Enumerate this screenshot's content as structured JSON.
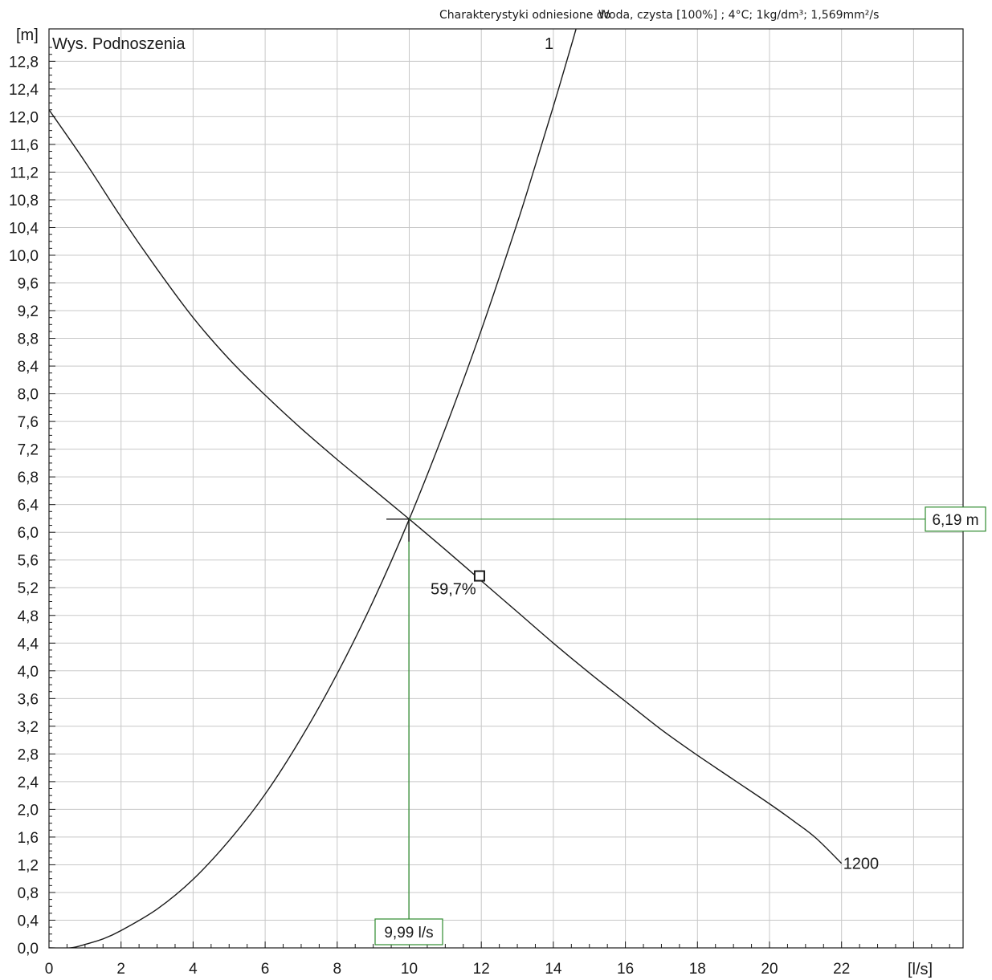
{
  "header": {
    "left_text": "Charakterystyki odniesione do",
    "right_text": "Woda, czysta [100%] ; 4°C; 1kg/dm³; 1,569mm²/s"
  },
  "chart_data": {
    "type": "line",
    "title": "Wys. Podnoszenia",
    "xlabel": "[l/s]",
    "ylabel": "[m]",
    "xlim": [
      0,
      25.2
    ],
    "ylim": [
      0,
      13.1
    ],
    "x_ticks": [
      0,
      2,
      4,
      6,
      8,
      10,
      12,
      14,
      16,
      18,
      20,
      22
    ],
    "x_tick_labels": [
      "0",
      "2",
      "4",
      "6",
      "8",
      "10",
      "12",
      "14",
      "16",
      "18",
      "20",
      "22"
    ],
    "y_ticks": [
      0,
      0.4,
      0.8,
      1.2,
      1.6,
      2.0,
      2.4,
      2.8,
      3.2,
      3.6,
      4.0,
      4.4,
      4.8,
      5.2,
      5.6,
      6.0,
      6.4,
      6.8,
      7.2,
      7.6,
      8.0,
      8.4,
      8.8,
      9.2,
      9.6,
      10.0,
      10.4,
      10.8,
      11.2,
      11.6,
      12.0,
      12.4,
      12.8
    ],
    "y_tick_labels": [
      "0,0",
      "0,4",
      "0,8",
      "1,2",
      "1,6",
      "2,0",
      "2,4",
      "2,8",
      "3,2",
      "3,6",
      "4,0",
      "4,4",
      "4,8",
      "5,2",
      "5,6",
      "6,0",
      "6,4",
      "6,8",
      "7,2",
      "7,6",
      "8,0",
      "8,4",
      "8,8",
      "9,2",
      "9,6",
      "10,0",
      "10,4",
      "10,8",
      "11,2",
      "11,6",
      "12,0",
      "12,4",
      "12,8"
    ],
    "grid": true,
    "series": [
      {
        "name": "1200",
        "kind": "pump-curve",
        "x": [
          0,
          1,
          2,
          3,
          4,
          5,
          6,
          7,
          8,
          9,
          10,
          11,
          12,
          13,
          14,
          15,
          16,
          17,
          18,
          19,
          20,
          20.7,
          21.3,
          22
        ],
        "y": [
          12.1,
          11.35,
          10.55,
          9.8,
          9.1,
          8.5,
          7.98,
          7.5,
          7.05,
          6.62,
          6.19,
          5.75,
          5.3,
          4.85,
          4.4,
          3.97,
          3.56,
          3.15,
          2.78,
          2.43,
          2.08,
          1.82,
          1.58,
          1.22
        ]
      },
      {
        "name": "1",
        "kind": "system-curve",
        "x": [
          0,
          0.6,
          1,
          1.5,
          2,
          3,
          4,
          5,
          6,
          7,
          8,
          9,
          10,
          11,
          12,
          13,
          13.5,
          14,
          14.5,
          14.7
        ],
        "y": [
          0,
          0,
          0.05,
          0.13,
          0.25,
          0.56,
          0.99,
          1.55,
          2.22,
          3.03,
          3.96,
          5.01,
          6.19,
          7.5,
          8.92,
          10.47,
          11.3,
          12.15,
          13.03,
          13.4
        ]
      }
    ],
    "operating_point": {
      "flow": 9.99,
      "head": 6.19,
      "flow_label": "9,99 l/s",
      "head_label": "6,19 m"
    },
    "efficiency_marker": {
      "x": 11.95,
      "y": 5.37,
      "label": "59,7%"
    },
    "colors": {
      "curve": "#1a1a1a",
      "grid": "#c8c8c8",
      "axis": "#1a1a1a",
      "operating_lines": "#2e8b2e"
    }
  }
}
